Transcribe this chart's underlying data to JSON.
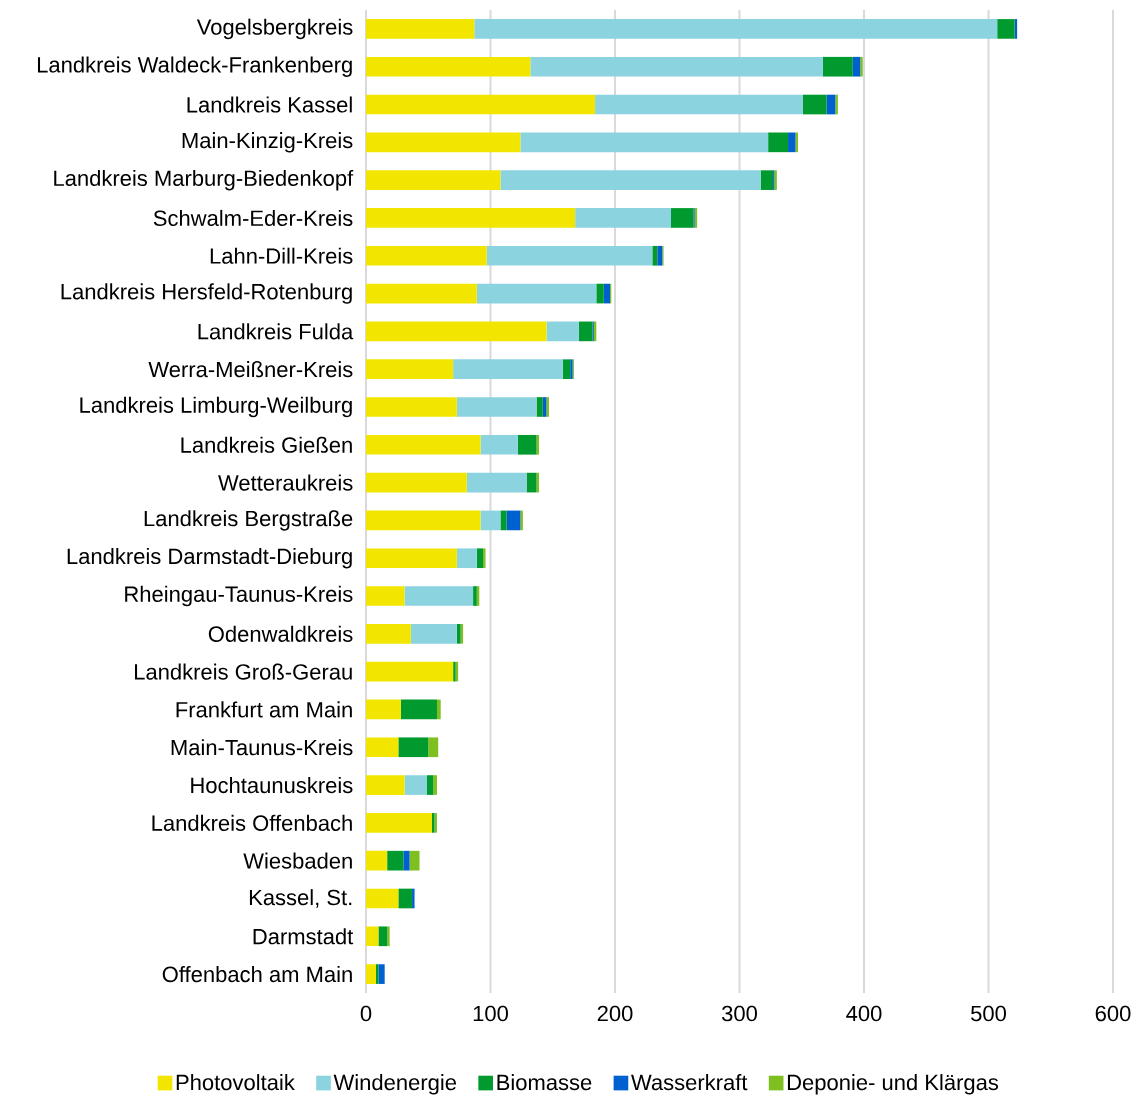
{
  "chart_data": {
    "type": "bar",
    "orientation": "horizontal",
    "stacked": true,
    "categories": [
      "Vogelsbergkreis",
      "Landkreis Waldeck-Frankenberg",
      "Landkreis Kassel",
      "Main-Kinzig-Kreis",
      "Landkreis Marburg-Biedenkopf",
      "Schwalm-Eder-Kreis",
      "Lahn-Dill-Kreis",
      "Landkreis Hersfeld-Rotenburg",
      "Landkreis Fulda",
      "Werra-Meißner-Kreis",
      "Landkreis Limburg-Weilburg",
      "Landkreis Gießen",
      "Wetteraukreis",
      "Landkreis Bergstraße",
      "Landkreis Darmstadt-Dieburg",
      "Rheingau-Taunus-Kreis",
      "Odenwaldkreis",
      "Landkreis Groß-Gerau",
      "Frankfurt am Main",
      "Main-Taunus-Kreis",
      "Hochtaunuskreis",
      "Landkreis Offenbach",
      "Wiesbaden",
      "Kassel, St.",
      "Darmstadt",
      "Offenbach am Main"
    ],
    "series": [
      {
        "name": "Photovoltaik",
        "color": "#f2e600",
        "values": [
          87,
          132,
          184,
          124,
          108,
          168,
          97,
          89,
          145,
          70,
          73,
          92,
          81,
          92,
          73,
          31,
          36,
          70,
          28,
          26,
          31,
          53,
          17,
          26,
          10,
          8
        ]
      },
      {
        "name": "Windenergie",
        "color": "#8cd3e0",
        "values": [
          420,
          235,
          167,
          199,
          209,
          77,
          133,
          96,
          26,
          88,
          64,
          30,
          48,
          16,
          16,
          55,
          37,
          0,
          0,
          0,
          18,
          0,
          0,
          0,
          0,
          0
        ]
      },
      {
        "name": "Biomasse",
        "color": "#009a2e",
        "values": [
          14,
          24,
          19,
          16,
          10,
          18,
          4,
          6,
          11,
          6,
          5,
          15,
          8,
          5,
          5,
          3,
          3,
          2,
          29,
          24,
          5,
          2,
          13,
          11,
          7,
          2
        ]
      },
      {
        "name": "Wasserkraft",
        "color": "#0060d0",
        "values": [
          2,
          6,
          7,
          6,
          1,
          1,
          4,
          5,
          1,
          2,
          3,
          0,
          0,
          11,
          0,
          0,
          0,
          0,
          0,
          0,
          0,
          0,
          5,
          2,
          0,
          5
        ]
      },
      {
        "name": "Deponie- und Klärgas",
        "color": "#7fbf1f",
        "values": [
          0,
          2,
          2,
          2,
          2,
          2,
          1,
          1,
          2,
          1,
          2,
          2,
          2,
          2,
          2,
          2,
          2,
          2,
          3,
          8,
          3,
          2,
          8,
          0,
          2,
          0
        ]
      }
    ],
    "xlim": [
      0,
      600
    ],
    "xticks": [
      0,
      100,
      200,
      300,
      400,
      500,
      600
    ],
    "grid": "x",
    "legend": "bottom"
  }
}
